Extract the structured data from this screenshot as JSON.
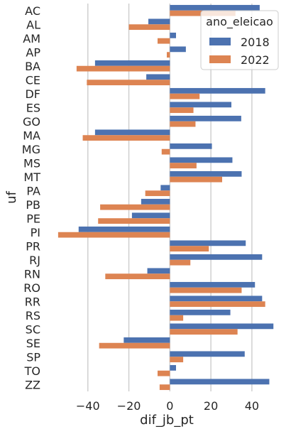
{
  "chart_data": {
    "type": "bar",
    "orientation": "horizontal",
    "xlabel": "dif_jb_pt",
    "ylabel": "uf",
    "xlim": [
      -60,
      57
    ],
    "xticks": [
      -40,
      -20,
      0,
      20,
      40
    ],
    "grid": "vertical",
    "legend": {
      "title": "ano_eleicao",
      "position": "top-right"
    },
    "categories": [
      "AC",
      "AL",
      "AM",
      "AP",
      "BA",
      "CE",
      "DF",
      "ES",
      "GO",
      "MA",
      "MG",
      "MS",
      "MT",
      "PA",
      "PB",
      "PE",
      "PI",
      "PR",
      "RJ",
      "RN",
      "RO",
      "RR",
      "RS",
      "SC",
      "SE",
      "SP",
      "TO",
      "ZZ"
    ],
    "series": [
      {
        "name": "2018",
        "color": "#4c72b0",
        "values": [
          43.8,
          -10.5,
          3.0,
          7.8,
          -36.5,
          -11.5,
          46.5,
          30.0,
          34.8,
          -36.5,
          20.5,
          30.5,
          35.0,
          -4.5,
          -14.0,
          -18.5,
          -44.5,
          37.0,
          45.0,
          -11.0,
          41.5,
          45.0,
          29.5,
          50.5,
          -22.5,
          36.5,
          3.0,
          48.5
        ]
      },
      {
        "name": "2022",
        "color": "#dd8452",
        "values": [
          32.0,
          -20.0,
          -6.0,
          -1.5,
          -45.5,
          -40.5,
          14.5,
          11.5,
          12.5,
          -42.5,
          -4.0,
          13.0,
          25.5,
          -12.0,
          -34.0,
          -35.0,
          -54.5,
          19.0,
          10.0,
          -31.5,
          35.0,
          46.5,
          6.5,
          33.0,
          -34.5,
          6.5,
          -6.0,
          -5.0
        ]
      }
    ]
  }
}
